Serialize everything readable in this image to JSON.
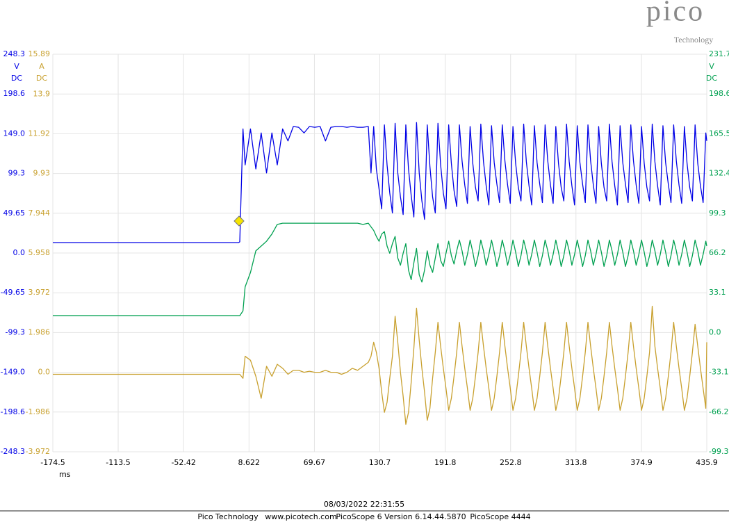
{
  "logo": {
    "name": "pico",
    "tagline": "Technology"
  },
  "timestamp": "08/03/2022 22:31:55",
  "footer": [
    "Pico Technology",
    "www.picotech.com",
    "PicoScope 6 Version 6.14.44.5870",
    "PicoScope 4444"
  ],
  "chart_data": {
    "type": "line",
    "xlabel": "ms",
    "grid": true,
    "xlim": [
      -174.5,
      435.9
    ],
    "xticks": [
      -174.5,
      -113.5,
      -52.42,
      8.622,
      69.67,
      130.7,
      191.8,
      252.8,
      313.8,
      374.9,
      435.9
    ],
    "ylim": [
      -248.3,
      248.3
    ],
    "y_unit": "V",
    "y_coupling": "DC",
    "yticks": [
      248.3,
      198.6,
      {
        "value": 149,
        "label": "149.0"
      },
      99.3,
      49.65,
      {
        "value": 0,
        "label": "0.0"
      },
      -49.65,
      -99.3,
      {
        "value": -149,
        "label": "-149.0"
      },
      -198.6,
      -248.3
    ],
    "y2lim": [
      -3.972,
      15.89
    ],
    "y2_unit": "A",
    "y2_coupling": "DC",
    "y2ticks": [
      15.89,
      13.9,
      11.92,
      9.93,
      7.944,
      5.958,
      3.972,
      1.986,
      {
        "value": 0,
        "label": "0.0"
      },
      -1.986,
      -3.972
    ],
    "y3lim": [
      -99.3,
      231.7
    ],
    "y3_unit": "V",
    "y3_coupling": "DC",
    "y3ticks": [
      231.7,
      198.6,
      165.5,
      132.4,
      99.3,
      66.2,
      33.1,
      {
        "value": 0,
        "label": "0.0"
      },
      -33.1,
      -66.2,
      -99.3
    ],
    "x": [
      -174.5,
      -150,
      -100,
      -50,
      -20,
      -1,
      0,
      3,
      5,
      10,
      15,
      20,
      25,
      30,
      35,
      40,
      45,
      50,
      55,
      60,
      65,
      70,
      75,
      80,
      85,
      90,
      95,
      100,
      105,
      110,
      115,
      120,
      122.5,
      125,
      127.5,
      130,
      132.5,
      135,
      137.5,
      140,
      142.5,
      145,
      147.5,
      150,
      152.5,
      155,
      157.5,
      160,
      162.5,
      165,
      167.5,
      170,
      172.5,
      175,
      177.5,
      180,
      182.5,
      185,
      187.5,
      190,
      192.5,
      195,
      197.5,
      200,
      202.5,
      205,
      207.5,
      210,
      212.5,
      215,
      217.5,
      220,
      222.5,
      225,
      227.5,
      230,
      232.5,
      235,
      237.5,
      240,
      242.5,
      245,
      247.5,
      250,
      252.5,
      255,
      257.5,
      260,
      262.5,
      265,
      267.5,
      270,
      272.5,
      275,
      277.5,
      280,
      282.5,
      285,
      287.5,
      290,
      292.5,
      295,
      297.5,
      300,
      302.5,
      305,
      307.5,
      310,
      312.5,
      315,
      317.5,
      320,
      322.5,
      325,
      327.5,
      330,
      332.5,
      335,
      337.5,
      340,
      342.5,
      345,
      347.5,
      350,
      352.5,
      355,
      357.5,
      360,
      362.5,
      365,
      367.5,
      370,
      372.5,
      375,
      377.5,
      380,
      382.5,
      385,
      387.5,
      390,
      392.5,
      395,
      397.5,
      400,
      402.5,
      405,
      407.5,
      410,
      412.5,
      415,
      417.5,
      420,
      422.5,
      425,
      427.5,
      430,
      432.5,
      435,
      435.9
    ],
    "series": [
      {
        "color": "#0000e6",
        "axis": "y",
        "values": [
          13,
          13,
          13,
          13,
          13,
          13,
          14,
          155,
          110,
          155,
          105,
          150,
          100,
          150,
          110,
          155,
          140,
          158,
          157,
          150,
          158,
          157,
          158,
          140,
          157,
          158,
          158,
          157,
          158,
          157,
          157,
          158,
          100,
          158,
          105,
          80,
          55,
          160,
          110,
          75,
          50,
          162,
          100,
          70,
          48,
          160,
          105,
          72,
          45,
          163,
          100,
          65,
          42,
          160,
          108,
          70,
          50,
          162,
          110,
          75,
          55,
          160,
          112,
          78,
          58,
          160,
          115,
          85,
          62,
          158,
          112,
          82,
          65,
          161,
          114,
          84,
          60,
          159,
          113,
          86,
          63,
          160,
          115,
          85,
          62,
          158,
          112,
          82,
          65,
          161,
          114,
          84,
          60,
          159,
          113,
          86,
          63,
          160,
          115,
          85,
          62,
          158,
          112,
          82,
          65,
          161,
          114,
          84,
          60,
          159,
          113,
          86,
          63,
          160,
          115,
          85,
          62,
          158,
          112,
          82,
          65,
          161,
          114,
          84,
          60,
          159,
          113,
          86,
          63,
          160,
          115,
          85,
          62,
          158,
          112,
          82,
          65,
          161,
          114,
          84,
          60,
          159,
          113,
          86,
          63,
          160,
          115,
          85,
          62,
          158,
          112,
          82,
          65,
          160,
          112,
          84,
          63,
          150,
          140
        ]
      },
      {
        "color": "#00a050",
        "axis": "y3",
        "values": [
          14,
          14,
          14,
          14,
          14,
          14,
          14,
          18,
          38,
          50,
          68,
          72,
          76,
          82,
          90,
          91,
          91,
          91,
          91,
          91,
          91,
          91,
          91,
          91,
          91,
          91,
          91,
          91,
          91,
          91,
          90,
          91,
          88,
          85,
          80,
          76,
          82,
          84,
          72,
          66,
          74,
          80,
          62,
          56,
          66,
          74,
          52,
          44,
          58,
          70,
          48,
          42,
          52,
          68,
          56,
          50,
          62,
          74,
          60,
          55,
          66,
          76,
          64,
          57,
          68,
          77,
          68,
          56,
          65,
          77,
          67,
          55,
          64,
          77,
          68,
          56,
          65,
          77,
          67,
          55,
          64,
          77,
          68,
          56,
          65,
          77,
          67,
          55,
          64,
          77,
          68,
          56,
          65,
          77,
          67,
          55,
          64,
          77,
          68,
          56,
          65,
          77,
          67,
          55,
          64,
          77,
          68,
          56,
          65,
          77,
          67,
          55,
          64,
          77,
          68,
          56,
          65,
          77,
          67,
          55,
          64,
          77,
          68,
          56,
          65,
          77,
          67,
          55,
          64,
          77,
          68,
          56,
          65,
          77,
          67,
          55,
          64,
          77,
          68,
          56,
          65,
          77,
          67,
          55,
          64,
          77,
          68,
          56,
          65,
          77,
          67,
          55,
          64,
          77,
          68,
          56,
          65,
          76,
          72
        ]
      },
      {
        "color": "#c8a02e",
        "axis": "y2",
        "values": [
          -0.1,
          -0.1,
          -0.1,
          -0.1,
          -0.1,
          -0.1,
          -0.1,
          -0.3,
          0.8,
          0.6,
          -0.2,
          -1.3,
          0.3,
          -0.2,
          0.4,
          0.2,
          -0.1,
          0.1,
          0.1,
          0,
          0.05,
          0,
          0,
          0.1,
          0,
          0,
          -0.1,
          0,
          0.2,
          0.1,
          0.3,
          0.5,
          0.8,
          1.5,
          1.0,
          0.2,
          -1.0,
          -2.0,
          -1.5,
          -0.3,
          0.8,
          2.8,
          1.5,
          0.0,
          -1.2,
          -2.6,
          -2.0,
          -0.5,
          1.2,
          3.2,
          1.6,
          0.2,
          -1.0,
          -2.4,
          -1.8,
          -0.3,
          1.0,
          2.5,
          1.3,
          0.2,
          -0.8,
          -1.9,
          -1.3,
          -0.2,
          1.0,
          2.5,
          1.3,
          0.2,
          -0.8,
          -1.9,
          -1.3,
          -0.2,
          1.0,
          2.5,
          1.3,
          0.2,
          -0.8,
          -1.9,
          -1.3,
          -0.2,
          1.0,
          2.5,
          1.3,
          0.2,
          -0.8,
          -1.9,
          -1.3,
          -0.2,
          1.0,
          2.5,
          1.3,
          0.2,
          -0.8,
          -1.9,
          -1.3,
          -0.2,
          1.0,
          2.5,
          1.3,
          0.2,
          -0.8,
          -1.9,
          -1.3,
          -0.2,
          1.0,
          2.5,
          1.3,
          0.2,
          -0.8,
          -1.9,
          -1.3,
          -0.2,
          1.0,
          2.5,
          1.3,
          0.2,
          -0.8,
          -1.9,
          -1.3,
          -0.2,
          1.0,
          2.5,
          1.3,
          0.2,
          -0.8,
          -1.9,
          -1.3,
          -0.2,
          1.0,
          2.5,
          1.3,
          0.2,
          -0.8,
          -1.9,
          -1.3,
          -0.2,
          1.0,
          3.3,
          1.3,
          0.2,
          -0.8,
          -1.9,
          -1.3,
          -0.2,
          1.0,
          2.5,
          1.3,
          0.2,
          -0.8,
          -1.9,
          -1.3,
          -0.2,
          1.0,
          2.4,
          1.3,
          0.2,
          -0.8,
          -1.8,
          1.5
        ]
      }
    ]
  }
}
